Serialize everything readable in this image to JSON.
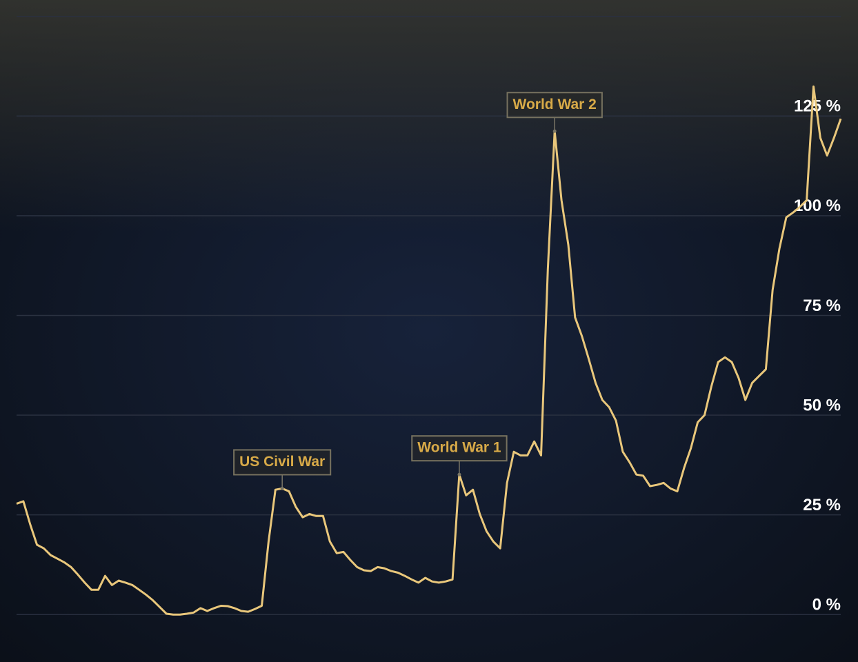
{
  "chart_data": {
    "type": "line",
    "values": [
      27.8,
      28.4,
      22.6,
      17.5,
      16.6,
      14.9,
      14.0,
      13.1,
      11.9,
      10.0,
      8.0,
      6.2,
      6.2,
      9.7,
      7.4,
      8.5,
      8.0,
      7.4,
      6.2,
      5.0,
      3.6,
      1.9,
      0.2,
      0,
      0,
      0.2,
      0.5,
      1.6,
      0.9,
      1.6,
      2.2,
      2.1,
      1.6,
      0.9,
      0.7,
      1.4,
      2.2,
      18.3,
      31.3,
      31.6,
      30.9,
      27.0,
      24.4,
      25.2,
      24.7,
      24.7,
      18.3,
      15.4,
      15.7,
      13.7,
      11.9,
      11.1,
      10.9,
      11.9,
      11.6,
      10.9,
      10.5,
      9.7,
      8.8,
      8.0,
      9.2,
      8.3,
      8.0,
      8.3,
      8.8,
      35.1,
      29.9,
      31.3,
      25.2,
      20.9,
      18.3,
      16.6,
      33.0,
      40.8,
      39.9,
      39.9,
      43.4,
      39.9,
      86.6,
      121.2,
      103.9,
      92.7,
      74.5,
      69.8,
      64.1,
      58.1,
      53.8,
      52.0,
      48.6,
      40.8,
      38.2,
      35.1,
      34.8,
      32.2,
      32.5,
      33.0,
      31.6,
      30.9,
      36.8,
      41.7,
      48.2,
      50.0,
      57.2,
      63.3,
      64.5,
      63.3,
      59.3,
      53.8,
      58.1,
      59.8,
      61.5,
      81.4,
      91.8,
      99.6,
      100.8,
      102.2,
      103.9,
      132.4,
      119.5,
      115.1,
      119.5,
      124.3
    ],
    "color": "#e9c77b",
    "ylim": [
      -11.9,
      154.1
    ],
    "yticks": [
      {
        "value": 0,
        "label": "0 %"
      },
      {
        "value": 25,
        "label": "25 %"
      },
      {
        "value": 50,
        "label": "50 %"
      },
      {
        "value": 75,
        "label": "75 %"
      },
      {
        "value": 100,
        "label": "100 %"
      },
      {
        "value": 125,
        "label": "125 %"
      }
    ],
    "grid": true,
    "annotations": [
      {
        "text": "US Civil War",
        "value": 31.6
      },
      {
        "text": "World War 1",
        "value": 35.1
      },
      {
        "text": "World War 2",
        "value": 121.2
      }
    ]
  }
}
